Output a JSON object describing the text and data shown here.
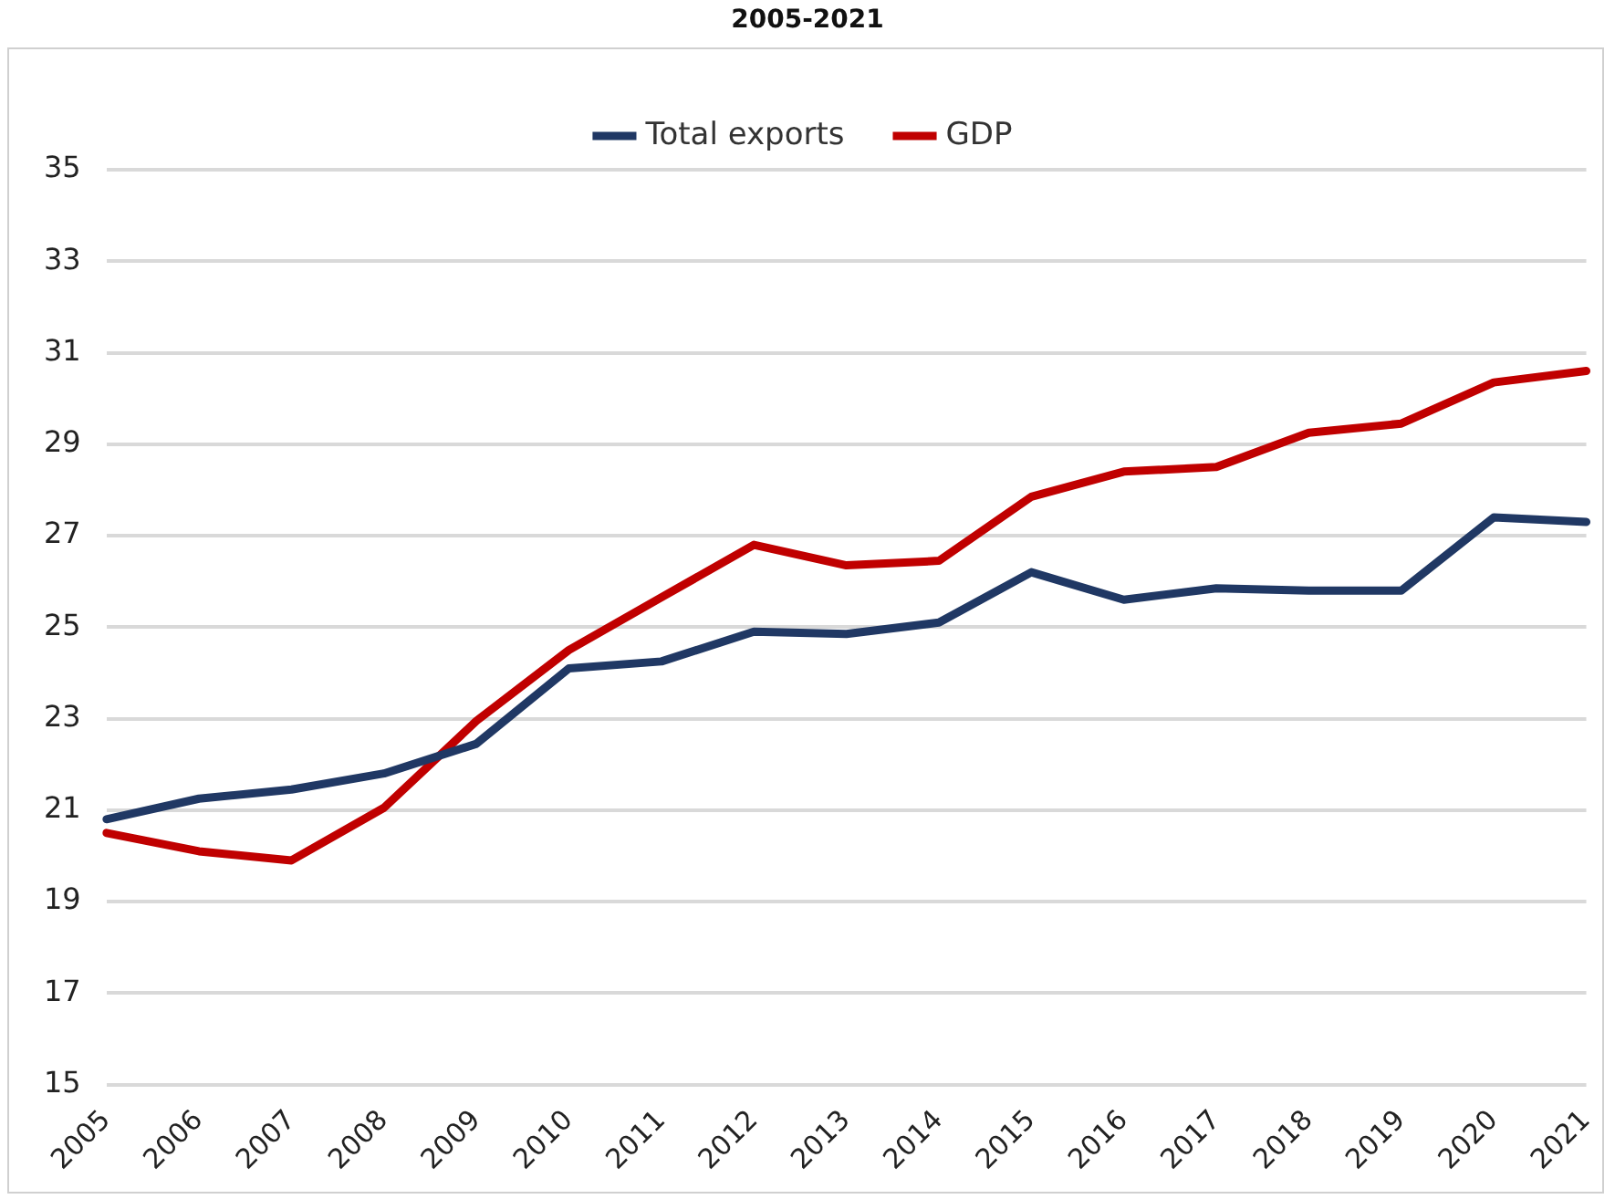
{
  "chart_data": {
    "type": "line",
    "title": "2005-2021",
    "categories": [
      "2005",
      "2006",
      "2007",
      "2008",
      "2009",
      "2010",
      "2011",
      "2012",
      "2013",
      "2014",
      "2015",
      "2016",
      "2017",
      "2018",
      "2019",
      "2020",
      "2021"
    ],
    "series": [
      {
        "name": "Total exports",
        "color": "#203864",
        "values": [
          20.8,
          21.25,
          21.45,
          21.8,
          22.45,
          24.1,
          24.25,
          24.9,
          24.85,
          25.1,
          26.2,
          25.6,
          25.85,
          25.8,
          25.8,
          27.4,
          27.3
        ]
      },
      {
        "name": "GDP",
        "color": "#c00000",
        "values": [
          20.5,
          20.1,
          19.9,
          21.05,
          22.95,
          24.5,
          25.65,
          26.8,
          26.35,
          26.45,
          27.85,
          28.4,
          28.5,
          29.25,
          29.45,
          30.35,
          30.6
        ]
      }
    ],
    "ylim": [
      15,
      35
    ],
    "yticks": [
      15,
      17,
      19,
      21,
      23,
      25,
      27,
      29,
      31,
      33,
      35
    ],
    "grid": "y",
    "legend": "top",
    "marker": "none",
    "line_style": "solid"
  }
}
